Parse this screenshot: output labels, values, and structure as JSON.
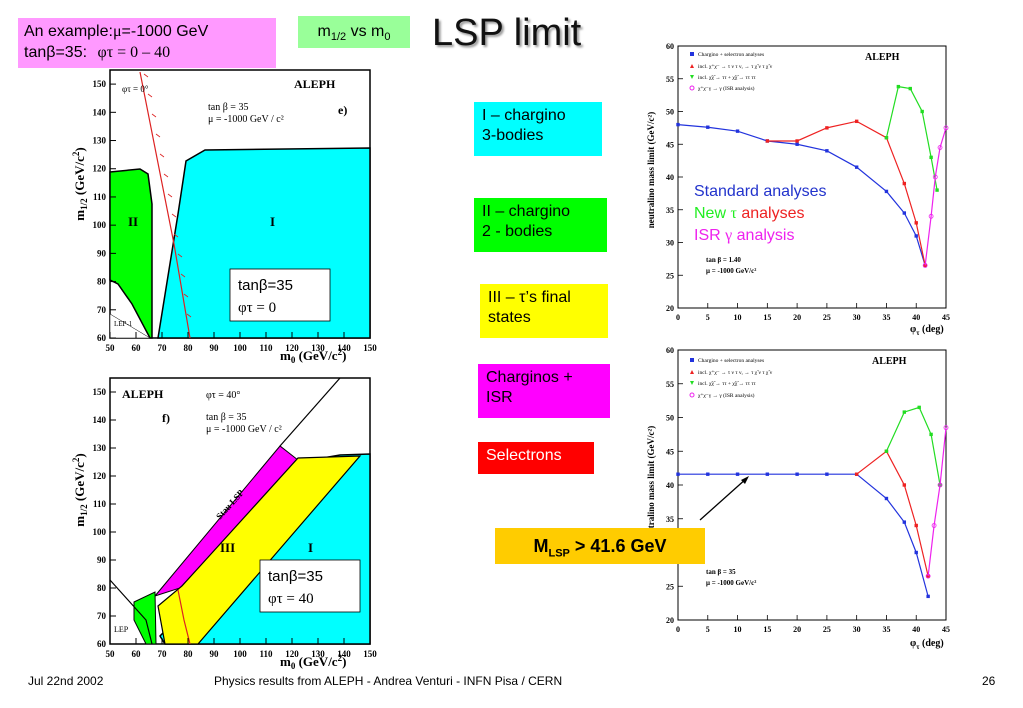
{
  "slide": {
    "title": "LSP limit",
    "example_box": {
      "line1_prefix": "An example:",
      "line1_mu": "μ",
      "line1_value": "=-1000 GeV",
      "line2_prefix": "tanβ=35:",
      "line2_phi": "φτ = 0 – 40"
    },
    "m_label": {
      "m": "m",
      "sub_half": "1/2",
      "vs": " vs m",
      "sub0": "0"
    },
    "legend_boxes": [
      {
        "text1": "I – chargino",
        "text2": "3-bodies",
        "color": "#00ffff"
      },
      {
        "text1": "II – chargino",
        "text2": "2 - bodies",
        "color": "#00ff00"
      },
      {
        "text1": "III – τ’s final",
        "text2": "states",
        "color": "#ffff00"
      },
      {
        "text1": "Charginos +",
        "text2": "ISR",
        "color": "#ff00ff"
      },
      {
        "text1": "Selectrons",
        "text2": "",
        "color": "#ff0000"
      }
    ],
    "analysis_legend": {
      "standard": "Standard analyses",
      "new_prefix": "New ",
      "new_tau": "τ",
      "new_suffix": " analyses",
      "isr_prefix": "ISR ",
      "isr_gamma": "γ",
      "isr_suffix": " analysis"
    },
    "result": {
      "prefix": "M",
      "sub": "LSP",
      "value": " > 41.6 GeV"
    },
    "footer": {
      "date": "Jul 22nd 2002",
      "center": "Physics results from ALEPH - Andrea Venturi - INFN Pisa / CERN",
      "page": "26"
    }
  },
  "panels": {
    "top_left": {
      "label": "ALEPH",
      "phi": "φτ = 0°",
      "tanb": "tan β = 35",
      "mu": "μ = -1000 GeV / c²",
      "tag": "e)",
      "region_I": "I",
      "region_II": "II",
      "lep": "LEP-1",
      "inset1": "tanβ=35",
      "inset2": "φτ = 0"
    },
    "bottom_left": {
      "label": "ALEPH",
      "phi": "φτ = 40°",
      "tanb": "tan β = 35",
      "mu": "μ = -1000 GeV / c²",
      "tag": "f)",
      "region_I": "I",
      "region_III": "III",
      "stau": "Stau LSP",
      "lep": "LEP",
      "inset1": "tanβ=35",
      "inset2": "φτ = 40"
    },
    "right_top": {
      "label": "ALEPH",
      "tanb": "tan β = 1.40",
      "mu": "μ = -1000 GeV/c²",
      "legend": [
        "Chargino + selectron analyses",
        "incl. χ⁺χ⁻ → τ ν τ ν, → τ χ̃ ν τ χ̃ ν",
        "incl. χ̃χ̃ → ττ + χ̃χ̃ → ττ ττ",
        "χ⁺χ⁻γ → γ (ISR analysis)"
      ]
    },
    "right_bottom": {
      "label": "ALEPH",
      "tanb": "tan β = 35",
      "mu": "μ = -1000 GeV/c²",
      "legend": [
        "Chargino + selectron analyses",
        "incl. χ⁺χ⁻ → τ ν τ ν, → τ χ̃ ν τ χ̃ ν",
        "incl. χ̃χ̃ → ττ + χ̃χ̃ → ττ ττ",
        "χ⁺χ⁻γ → γ (ISR analysis)"
      ]
    }
  },
  "chart_data": [
    {
      "type": "area",
      "xlabel": "m0 (GeV/c²)",
      "ylabel": "m1/2 (GeV/c²)",
      "xlim": [
        50,
        150
      ],
      "ylim": [
        60,
        155
      ],
      "x_ticks": [
        50,
        60,
        70,
        80,
        90,
        100,
        110,
        120,
        130,
        140,
        150
      ],
      "y_ticks": [
        60,
        70,
        80,
        90,
        100,
        110,
        120,
        130,
        140,
        150
      ]
    },
    {
      "type": "area",
      "xlabel": "m0 (GeV/c²)",
      "ylabel": "m1/2 (GeV/c²)",
      "xlim": [
        50,
        150
      ],
      "ylim": [
        60,
        155
      ],
      "x_ticks": [
        50,
        60,
        70,
        80,
        90,
        100,
        110,
        120,
        130,
        140,
        150
      ],
      "y_ticks": [
        60,
        70,
        80,
        90,
        100,
        110,
        120,
        130,
        140,
        150
      ]
    },
    {
      "type": "line",
      "xlabel": "φτ (deg)",
      "ylabel": "neutralino mass limit (GeV/c²)",
      "xlim": [
        0,
        45
      ],
      "ylim": [
        20,
        60
      ],
      "x_ticks": [
        0,
        5,
        10,
        15,
        20,
        25,
        30,
        35,
        40,
        45
      ],
      "y_ticks": [
        20,
        25,
        30,
        35,
        40,
        45,
        50,
        55,
        60
      ],
      "series": [
        {
          "color": "#2233dd",
          "x": [
            0,
            5,
            10,
            15,
            20,
            25,
            30,
            35,
            38,
            40,
            41.5
          ],
          "y": [
            48,
            47.6,
            47,
            45.5,
            45,
            44,
            41.5,
            37.8,
            34.5,
            31,
            26.5
          ]
        },
        {
          "color": "#ee2222",
          "x": [
            15,
            20,
            25,
            30,
            35,
            38,
            40,
            41.5
          ],
          "y": [
            45.5,
            45.5,
            47.5,
            48.5,
            46,
            39,
            33,
            26.5
          ]
        },
        {
          "color": "#22dd22",
          "x": [
            35,
            37,
            39,
            41,
            42.5,
            43.5
          ],
          "y": [
            46,
            53.8,
            53.5,
            50,
            43,
            38
          ]
        },
        {
          "color": "#ee22ee",
          "x": [
            41.5,
            42.5,
            43.2,
            44,
            45
          ],
          "y": [
            26.5,
            34,
            40,
            44.5,
            47.5
          ]
        }
      ]
    },
    {
      "type": "line",
      "xlabel": "φτ (deg)",
      "ylabel": "neutralino mass limit (GeV/c²)",
      "xlim": [
        0,
        45
      ],
      "ylim": [
        20,
        60
      ],
      "x_ticks": [
        0,
        5,
        10,
        15,
        20,
        25,
        30,
        35,
        40,
        45
      ],
      "y_ticks": [
        20,
        25,
        30,
        35,
        40,
        45,
        50,
        55,
        60
      ],
      "series": [
        {
          "color": "#2233dd",
          "x": [
            0,
            5,
            10,
            15,
            20,
            25,
            30,
            35,
            38,
            40,
            42
          ],
          "y": [
            41.6,
            41.6,
            41.6,
            41.6,
            41.6,
            41.6,
            41.6,
            38,
            34.5,
            30,
            23.5
          ]
        },
        {
          "color": "#ee2222",
          "x": [
            30,
            35,
            38,
            40,
            42
          ],
          "y": [
            41.6,
            45,
            40,
            34,
            26.5
          ]
        },
        {
          "color": "#22dd22",
          "x": [
            35,
            38,
            40.5,
            42.5,
            44
          ],
          "y": [
            45,
            50.8,
            51.5,
            47.5,
            40
          ]
        },
        {
          "color": "#ee22ee",
          "x": [
            42,
            43,
            44,
            45
          ],
          "y": [
            26.5,
            34,
            40,
            48.5
          ]
        }
      ]
    }
  ]
}
